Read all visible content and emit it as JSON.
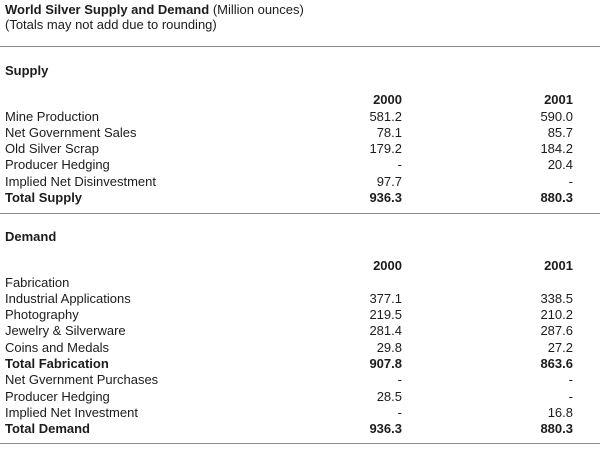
{
  "header": {
    "title": "World Silver Supply and Demand",
    "units": "(Million ounces)",
    "note": "(Totals may not add due to rounding)"
  },
  "supply": {
    "heading": "Supply",
    "years": [
      "2000",
      "2001"
    ],
    "rows": [
      {
        "label": "Mine Production",
        "y2000": "581.2",
        "y2001": "590.0"
      },
      {
        "label": "Net Government Sales",
        "y2000": "78.1",
        "y2001": "85.7"
      },
      {
        "label": "Old Silver Scrap",
        "y2000": "179.2",
        "y2001": "184.2"
      },
      {
        "label": "Producer Hedging",
        "y2000": "-",
        "y2001": "20.4"
      },
      {
        "label": "Implied Net Disinvestment",
        "y2000": "97.7",
        "y2001": "-"
      }
    ],
    "total": {
      "label": "Total Supply",
      "y2000": "936.3",
      "y2001": "880.3"
    }
  },
  "demand": {
    "heading": "Demand",
    "years": [
      "2000",
      "2001"
    ],
    "fabrication_label": "Fabrication",
    "fab_rows": [
      {
        "label": "Industrial Applications",
        "y2000": "377.1",
        "y2001": "338.5"
      },
      {
        "label": "Photography",
        "y2000": "219.5",
        "y2001": "210.2"
      },
      {
        "label": "Jewelry & Silverware",
        "y2000": "281.4",
        "y2001": "287.6"
      },
      {
        "label": "Coins and Medals",
        "y2000": "29.8",
        "y2001": "27.2"
      }
    ],
    "fab_total": {
      "label": "Total Fabrication",
      "y2000": "907.8",
      "y2001": "863.6"
    },
    "other_rows": [
      {
        "label": "Net Gvernment Purchases",
        "y2000": "-",
        "y2001": "-"
      },
      {
        "label": "Producer Hedging",
        "y2000": "28.5",
        "y2001": "-"
      },
      {
        "label": "Implied Net Investment",
        "y2000": "-",
        "y2001": "16.8"
      }
    ],
    "total": {
      "label": "Total Demand",
      "y2000": "936.3",
      "y2001": "880.3"
    }
  }
}
